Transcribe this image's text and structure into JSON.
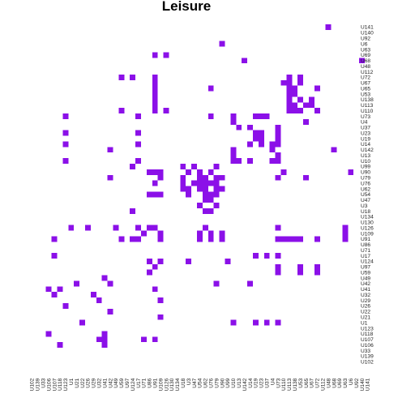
{
  "chart_data": {
    "type": "heatmap",
    "title": "Leisure",
    "xlabel": "",
    "ylabel": "",
    "colors": {
      "cell": "#8b10e8",
      "background": "#ffffff"
    },
    "grid": false,
    "legend": "none",
    "x_labels": [
      "U102",
      "U139",
      "U33",
      "U106",
      "U107",
      "U118",
      "U123",
      "U1",
      "U21",
      "U22",
      "U26",
      "U29",
      "U32",
      "U41",
      "U42",
      "U49",
      "U59",
      "U97",
      "U124",
      "U17",
      "U71",
      "U86",
      "U91",
      "U109",
      "U126",
      "U130",
      "U134",
      "U18",
      "U3",
      "U47",
      "U54",
      "U62",
      "U76",
      "U79",
      "U90",
      "U99",
      "U10",
      "U13",
      "U142",
      "U14",
      "U19",
      "U23",
      "U37",
      "U4",
      "U73",
      "U110",
      "U113",
      "U138",
      "U53",
      "U65",
      "U67",
      "U72",
      "U112",
      "U48",
      "U68",
      "U69",
      "U63",
      "U6",
      "U92",
      "U140",
      "U141"
    ],
    "y_labels": [
      "U141",
      "U140",
      "U92",
      "U6",
      "U63",
      "U69",
      "U68",
      "U48",
      "U112",
      "U72",
      "U67",
      "U65",
      "U53",
      "U138",
      "U113",
      "U110",
      "U73",
      "U4",
      "U37",
      "U23",
      "U19",
      "U14",
      "U142",
      "U13",
      "U10",
      "U99",
      "U90",
      "U79",
      "U76",
      "U62",
      "U54",
      "U47",
      "U3",
      "U18",
      "U134",
      "U130",
      "U126",
      "U109",
      "U91",
      "U86",
      "U71",
      "U17",
      "U124",
      "U97",
      "U59",
      "U49",
      "U42",
      "U41",
      "U32",
      "U29",
      "U26",
      "U22",
      "U21",
      "U1",
      "U123",
      "U118",
      "U107",
      "U106",
      "U33",
      "U139",
      "U102"
    ],
    "cells": [
      [
        "U141",
        "U48"
      ],
      [
        "U6",
        "U90"
      ],
      [
        "U69",
        "U91"
      ],
      [
        "U69",
        "U126"
      ],
      [
        "U68",
        "U142"
      ],
      [
        "U68",
        "U140"
      ],
      [
        "U72",
        "U124"
      ],
      [
        "U72",
        "U59"
      ],
      [
        "U72",
        "U91"
      ],
      [
        "U72",
        "U113"
      ],
      [
        "U72",
        "U53"
      ],
      [
        "U67",
        "U91"
      ],
      [
        "U67",
        "U110"
      ],
      [
        "U67",
        "U113"
      ],
      [
        "U67",
        "U53"
      ],
      [
        "U65",
        "U91"
      ],
      [
        "U65",
        "U76"
      ],
      [
        "U65",
        "U113"
      ],
      [
        "U65",
        "U138"
      ],
      [
        "U65",
        "U72"
      ],
      [
        "U53",
        "U91"
      ],
      [
        "U53",
        "U113"
      ],
      [
        "U53",
        "U138"
      ],
      [
        "U138",
        "U91"
      ],
      [
        "U138",
        "U113"
      ],
      [
        "U138",
        "U53"
      ],
      [
        "U138",
        "U67"
      ],
      [
        "U113",
        "U91"
      ],
      [
        "U113",
        "U113"
      ],
      [
        "U113",
        "U138"
      ],
      [
        "U113",
        "U65"
      ],
      [
        "U113",
        "U67"
      ],
      [
        "U110",
        "U59"
      ],
      [
        "U110",
        "U91"
      ],
      [
        "U110",
        "U126"
      ],
      [
        "U110",
        "U113"
      ],
      [
        "U110",
        "U138"
      ],
      [
        "U110",
        "U53"
      ],
      [
        "U110",
        "U72"
      ],
      [
        "U73",
        "U123"
      ],
      [
        "U73",
        "U17"
      ],
      [
        "U73",
        "U76"
      ],
      [
        "U73",
        "U10"
      ],
      [
        "U73",
        "U19"
      ],
      [
        "U73",
        "U23"
      ],
      [
        "U73",
        "U37"
      ],
      [
        "U4",
        "U10"
      ],
      [
        "U4",
        "U65"
      ],
      [
        "U37",
        "U13"
      ],
      [
        "U37",
        "U14"
      ],
      [
        "U37",
        "U73"
      ],
      [
        "U23",
        "U123"
      ],
      [
        "U23",
        "U17"
      ],
      [
        "U23",
        "U19"
      ],
      [
        "U23",
        "U23"
      ],
      [
        "U23",
        "U73"
      ],
      [
        "U19",
        "U19"
      ],
      [
        "U19",
        "U23"
      ],
      [
        "U19",
        "U73"
      ],
      [
        "U14",
        "U123"
      ],
      [
        "U14",
        "U17"
      ],
      [
        "U14",
        "U14"
      ],
      [
        "U14",
        "U23"
      ],
      [
        "U14",
        "U4"
      ],
      [
        "U14",
        "U73"
      ],
      [
        "U142",
        "U42"
      ],
      [
        "U142",
        "U10"
      ],
      [
        "U142",
        "U4"
      ],
      [
        "U142",
        "U68"
      ],
      [
        "U13",
        "U10"
      ],
      [
        "U13",
        "U73"
      ],
      [
        "U10",
        "U123"
      ],
      [
        "U10",
        "U17"
      ],
      [
        "U10",
        "U10"
      ],
      [
        "U10",
        "U13"
      ],
      [
        "U10",
        "U14"
      ],
      [
        "U10",
        "U4"
      ],
      [
        "U10",
        "U73"
      ],
      [
        "U99",
        "U124"
      ],
      [
        "U99",
        "U18"
      ],
      [
        "U99",
        "U47"
      ],
      [
        "U99",
        "U79"
      ],
      [
        "U90",
        "U86"
      ],
      [
        "U90",
        "U91"
      ],
      [
        "U90",
        "U109"
      ],
      [
        "U90",
        "U3"
      ],
      [
        "U90",
        "U54"
      ],
      [
        "U90",
        "U76"
      ],
      [
        "U90",
        "U110"
      ],
      [
        "U90",
        "U6"
      ],
      [
        "U79",
        "U42"
      ],
      [
        "U79",
        "U109"
      ],
      [
        "U79",
        "U18"
      ],
      [
        "U79",
        "U54"
      ],
      [
        "U79",
        "U62"
      ],
      [
        "U79",
        "U79"
      ],
      [
        "U79",
        "U90"
      ],
      [
        "U79",
        "U73"
      ],
      [
        "U79",
        "U65"
      ],
      [
        "U76",
        "U91"
      ],
      [
        "U76",
        "U18"
      ],
      [
        "U76",
        "U47"
      ],
      [
        "U76",
        "U54"
      ],
      [
        "U76",
        "U62"
      ],
      [
        "U76",
        "U76"
      ],
      [
        "U76",
        "U79"
      ],
      [
        "U62",
        "U3"
      ],
      [
        "U62",
        "U18"
      ],
      [
        "U62",
        "U54"
      ],
      [
        "U62",
        "U62"
      ],
      [
        "U62",
        "U79"
      ],
      [
        "U62",
        "U90"
      ],
      [
        "U54",
        "U86"
      ],
      [
        "U54",
        "U91"
      ],
      [
        "U54",
        "U109"
      ],
      [
        "U54",
        "U3"
      ],
      [
        "U54",
        "U62"
      ],
      [
        "U54",
        "U76"
      ],
      [
        "U54",
        "U79"
      ],
      [
        "U47",
        "U62"
      ],
      [
        "U47",
        "U76"
      ],
      [
        "U3",
        "U54"
      ],
      [
        "U3",
        "U79"
      ],
      [
        "U18",
        "U124"
      ],
      [
        "U18",
        "U62"
      ],
      [
        "U18",
        "U76"
      ],
      [
        "U126",
        "U1"
      ],
      [
        "U126",
        "U26"
      ],
      [
        "U126",
        "U49"
      ],
      [
        "U126",
        "U17"
      ],
      [
        "U126",
        "U86"
      ],
      [
        "U126",
        "U91"
      ],
      [
        "U126",
        "U62"
      ],
      [
        "U126",
        "U73"
      ],
      [
        "U126",
        "U63"
      ],
      [
        "U109",
        "U71"
      ],
      [
        "U109",
        "U109"
      ],
      [
        "U109",
        "U54"
      ],
      [
        "U109",
        "U76"
      ],
      [
        "U109",
        "U90"
      ],
      [
        "U109",
        "U63"
      ],
      [
        "U91",
        "U107"
      ],
      [
        "U91",
        "U59"
      ],
      [
        "U91",
        "U124"
      ],
      [
        "U91",
        "U17"
      ],
      [
        "U91",
        "U109"
      ],
      [
        "U91",
        "U54"
      ],
      [
        "U91",
        "U76"
      ],
      [
        "U91",
        "U90"
      ],
      [
        "U91",
        "U73"
      ],
      [
        "U91",
        "U110"
      ],
      [
        "U91",
        "U113"
      ],
      [
        "U91",
        "U138"
      ],
      [
        "U91",
        "U53"
      ],
      [
        "U91",
        "U72"
      ],
      [
        "U91",
        "U63"
      ],
      [
        "U17",
        "U107"
      ],
      [
        "U17",
        "U19"
      ],
      [
        "U17",
        "U37"
      ],
      [
        "U17",
        "U73"
      ],
      [
        "U124",
        "U86"
      ],
      [
        "U124",
        "U109"
      ],
      [
        "U124",
        "U3"
      ],
      [
        "U124",
        "U99"
      ],
      [
        "U97",
        "U91"
      ],
      [
        "U97",
        "U73"
      ],
      [
        "U97",
        "U53"
      ],
      [
        "U97",
        "U72"
      ],
      [
        "U59",
        "U86"
      ],
      [
        "U59",
        "U73"
      ],
      [
        "U59",
        "U53"
      ],
      [
        "U59",
        "U72"
      ],
      [
        "U49",
        "U41"
      ],
      [
        "U42",
        "U21"
      ],
      [
        "U42",
        "U42"
      ],
      [
        "U42",
        "U79"
      ],
      [
        "U42",
        "U14"
      ],
      [
        "U41",
        "U106"
      ],
      [
        "U41",
        "U118"
      ],
      [
        "U41",
        "U91"
      ],
      [
        "U32",
        "U107"
      ],
      [
        "U32",
        "U29"
      ],
      [
        "U29",
        "U32"
      ],
      [
        "U29",
        "U109"
      ],
      [
        "U26",
        "U123"
      ],
      [
        "U22",
        "U42"
      ],
      [
        "U21",
        "U109"
      ],
      [
        "U1",
        "U22"
      ],
      [
        "U1",
        "U10"
      ],
      [
        "U1",
        "U19"
      ],
      [
        "U1",
        "U37"
      ],
      [
        "U1",
        "U73"
      ],
      [
        "U118",
        "U106"
      ],
      [
        "U118",
        "U41"
      ],
      [
        "U107",
        "U32"
      ],
      [
        "U107",
        "U41"
      ],
      [
        "U107",
        "U71"
      ],
      [
        "U107",
        "U91"
      ],
      [
        "U106",
        "U118"
      ],
      [
        "U106",
        "U41"
      ]
    ]
  }
}
